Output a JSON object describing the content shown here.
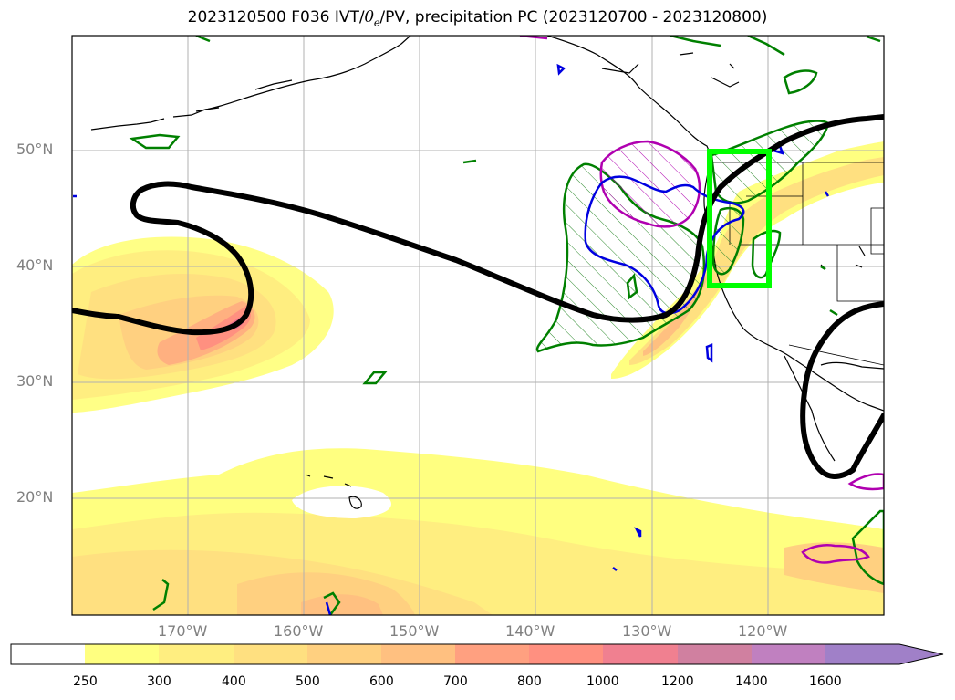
{
  "title": {
    "prefix": "2023120500 F036 IVT/",
    "theta_symbol": "θ",
    "theta_sub": "e",
    "suffix": "/PV, precipitation PC (2023120700 - 2023120800)"
  },
  "map": {
    "projection": "plate-carree",
    "lon_range": [
      -179,
      -109
    ],
    "lat_range": [
      10,
      60
    ],
    "lat_labels": [
      "50°N",
      "40°N",
      "30°N",
      "20°N"
    ],
    "lon_labels": [
      "170°W",
      "160°W",
      "150°W",
      "140°W",
      "130°W",
      "120°W"
    ],
    "gridlines": true,
    "contours": {
      "pv_line": "black thick",
      "precip_pc_green": "green",
      "magenta": "magenta",
      "blue": "blue"
    },
    "target_box_color": "#00ff00"
  },
  "colorbar": {
    "ticks": [
      "250",
      "300",
      "400",
      "500",
      "600",
      "700",
      "800",
      "1000",
      "1200",
      "1400",
      "1600"
    ],
    "colors": [
      "#ffffff",
      "#ffff80",
      "#ffee80",
      "#ffe080",
      "#ffd080",
      "#ffc080",
      "#ffa080",
      "#ff9080",
      "#f08090",
      "#d080a0",
      "#c080c0",
      "#a080c8"
    ],
    "extend": "max"
  }
}
